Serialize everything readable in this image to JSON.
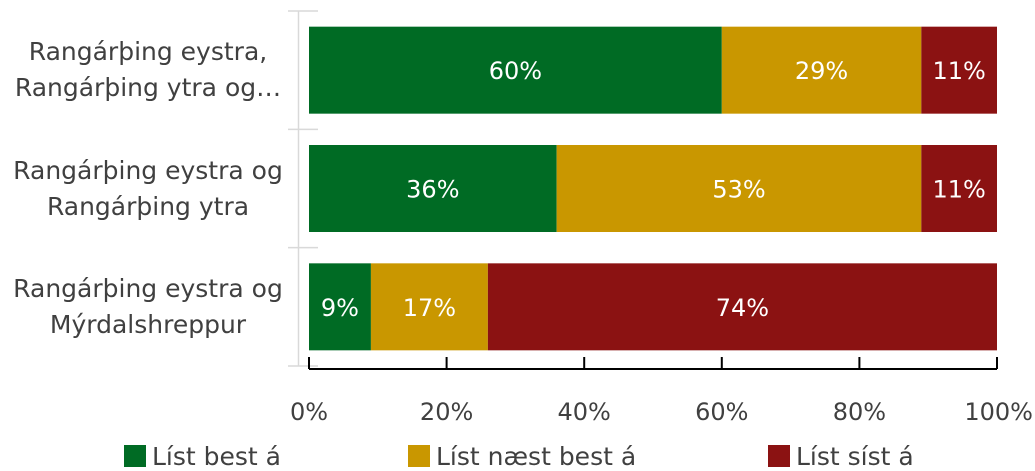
{
  "chart_data": {
    "type": "bar",
    "orientation": "horizontal",
    "stacked": true,
    "categories": [
      [
        "Rangárþing eystra,",
        "Rangárþing ytra og…"
      ],
      [
        "Rangárþing eystra og",
        "Rangárþing ytra"
      ],
      [
        "Rangárþing eystra og",
        "Mýrdalshreppur"
      ]
    ],
    "series": [
      {
        "name": "Líst best á",
        "color": "#006B24",
        "values": [
          60,
          36,
          9
        ]
      },
      {
        "name": "Líst næst best á",
        "color": "#C99700",
        "values": [
          29,
          53,
          17
        ]
      },
      {
        "name": "Líst síst á",
        "color": "#8B1212",
        "values": [
          11,
          11,
          74
        ]
      }
    ],
    "data_labels": [
      [
        "60%",
        "36%",
        "9%"
      ],
      [
        "29%",
        "53%",
        "17%"
      ],
      [
        "11%",
        "11%",
        "74%"
      ]
    ],
    "xlim": [
      0,
      100
    ],
    "x_ticks": [
      "0%",
      "20%",
      "40%",
      "60%",
      "80%",
      "100%"
    ],
    "grid": false,
    "legend_position": "bottom"
  }
}
